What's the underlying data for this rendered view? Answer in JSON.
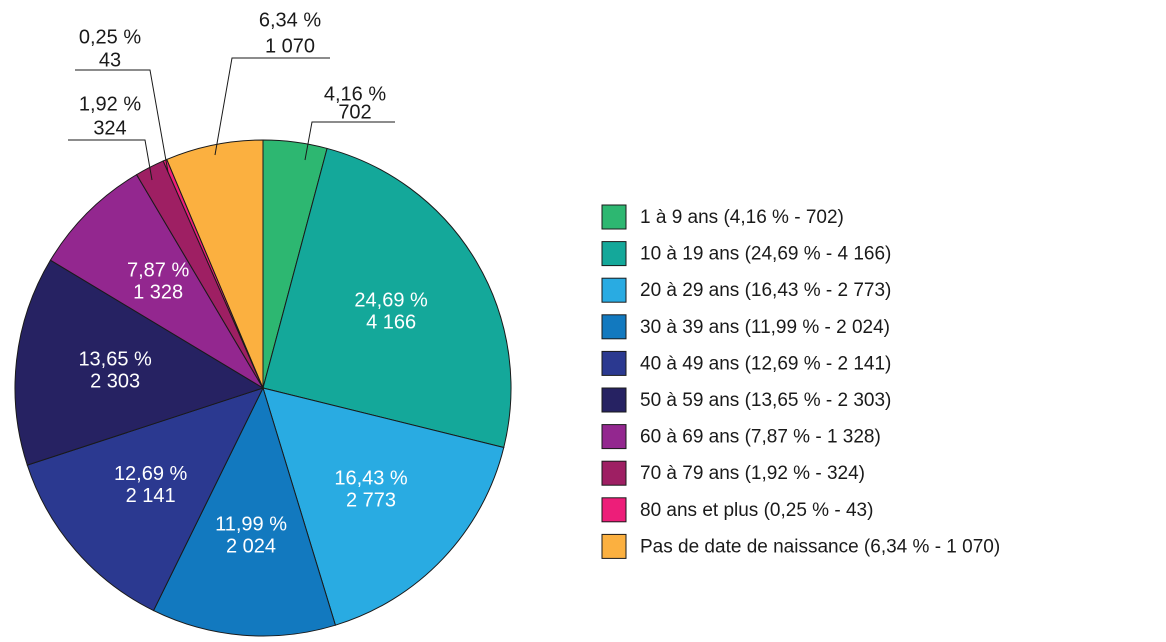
{
  "chart_data": {
    "type": "pie",
    "categories": [
      "1 à 9 ans (4,16 % - 702)",
      "10 à 19 ans (24,69 % - 4 166)",
      "20 à 29 ans (16,43 % - 2 773)",
      "30 à 39 ans (11,99 % - 2 024)",
      "40 à 49 ans (12,69 % - 2 141)",
      "50 à 59 ans (13,65 % - 2 303)",
      "60 à 69 ans (7,87 % - 1 328)",
      "70 à 79 ans (1,92 % - 324)",
      "80 ans et plus (0,25 % - 43)",
      "Pas de date de naissance (6,34 % - 1 070)"
    ],
    "values": [
      4.16,
      24.69,
      16.43,
      11.99,
      12.69,
      13.65,
      7.87,
      1.92,
      0.25,
      6.34
    ],
    "value_labels": [
      "4,16 %",
      "24,69 %",
      "16,43 %",
      "11,99 %",
      "12,69 %",
      "13,65 %",
      "7,87 %",
      "1,92 %",
      "0,25 %",
      "6,34 %"
    ],
    "counts": [
      702,
      4166,
      2773,
      2024,
      2141,
      2303,
      1328,
      324,
      43,
      1070
    ],
    "count_labels": [
      "702",
      "4 166",
      "2 773",
      "2 024",
      "2 141",
      "2 303",
      "1 328",
      "324",
      "43",
      "1 070"
    ],
    "colors": [
      "#2db771",
      "#14a89a",
      "#29abe2",
      "#1279bf",
      "#2b3990",
      "#262262",
      "#93278f",
      "#9e1f63",
      "#ed1e79",
      "#fbb040"
    ],
    "legend": "right"
  }
}
